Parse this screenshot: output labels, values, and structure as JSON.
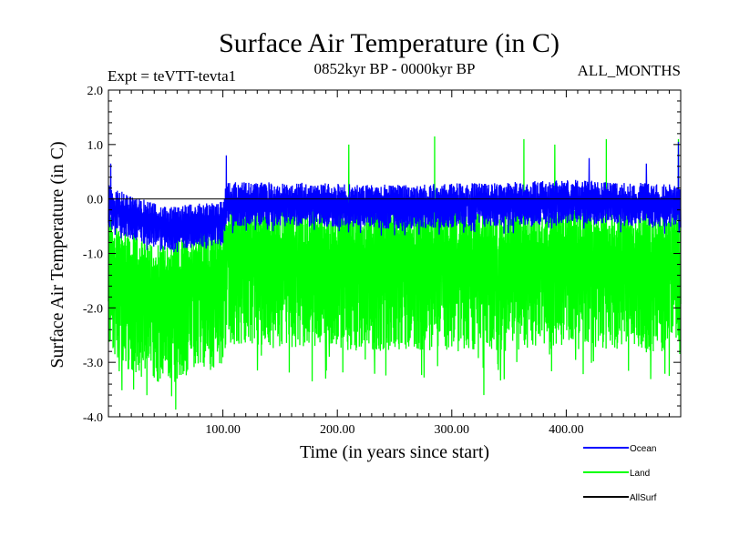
{
  "chart_data": {
    "type": "line",
    "title": "Surface Air Temperature (in C)",
    "subtitle_left": "Expt = teVTT-tevta1",
    "subtitle_center": "0852kyr BP - 0000kyr BP",
    "subtitle_right": "ALL_MONTHS",
    "xlabel": "Time (in years since start)",
    "ylabel": "Surface Air Temperature (in C)",
    "xlim": [
      0,
      500
    ],
    "ylim": [
      -4.0,
      2.0
    ],
    "x_ticks": [
      {
        "value": 100,
        "label": "100.00"
      },
      {
        "value": 200,
        "label": "200.00"
      },
      {
        "value": 300,
        "label": "300.00"
      },
      {
        "value": 400,
        "label": "400.00"
      }
    ],
    "y_ticks": [
      {
        "value": 2.0,
        "label": "2.0"
      },
      {
        "value": 1.0,
        "label": "1.0"
      },
      {
        "value": 0.0,
        "label": "0.0"
      },
      {
        "value": -1.0,
        "label": "-1.0"
      },
      {
        "value": -2.0,
        "label": "-2.0"
      },
      {
        "value": -3.0,
        "label": "-3.0"
      },
      {
        "value": -4.0,
        "label": "-4.0"
      }
    ],
    "series": [
      {
        "name": "Land",
        "color": "#00ff00",
        "baseline": [
          [
            0,
            -1.0
          ],
          [
            20,
            -1.4
          ],
          [
            50,
            -1.65
          ],
          [
            75,
            -1.4
          ],
          [
            100,
            -1.3
          ],
          [
            103,
            -0.9
          ],
          [
            150,
            -0.95
          ],
          [
            250,
            -1.0
          ],
          [
            350,
            -1.0
          ],
          [
            400,
            -0.95
          ],
          [
            450,
            -1.0
          ],
          [
            500,
            -1.05
          ]
        ],
        "spread_low": 1.8,
        "spread_high": 1.0,
        "extremes": [
          [
            22,
            -3.5
          ],
          [
            60,
            -3.3
          ],
          [
            178,
            -3.35
          ],
          [
            328,
            -3.6
          ],
          [
            490,
            -3.25
          ],
          [
            210,
            1.0
          ],
          [
            285,
            1.15
          ],
          [
            363,
            1.1
          ],
          [
            390,
            1.0
          ],
          [
            435,
            1.1
          ],
          [
            498,
            1.1
          ]
        ]
      },
      {
        "name": "Ocean",
        "color": "#0000ff",
        "baseline": [
          [
            0,
            -0.1
          ],
          [
            20,
            -0.3
          ],
          [
            50,
            -0.5
          ],
          [
            75,
            -0.45
          ],
          [
            100,
            -0.4
          ],
          [
            103,
            -0.05
          ],
          [
            150,
            -0.05
          ],
          [
            250,
            -0.1
          ],
          [
            350,
            -0.05
          ],
          [
            400,
            0.0
          ],
          [
            450,
            -0.05
          ],
          [
            500,
            -0.1
          ]
        ],
        "spread_low": 0.45,
        "spread_high": 0.45,
        "extremes": [
          [
            2,
            0.65
          ],
          [
            103,
            0.8
          ],
          [
            420,
            0.75
          ],
          [
            470,
            0.65
          ],
          [
            498,
            1.05
          ]
        ]
      },
      {
        "name": "AllSurf",
        "color": "#000000",
        "constant": 0.0
      }
    ],
    "legend_position": "bottom-right"
  }
}
